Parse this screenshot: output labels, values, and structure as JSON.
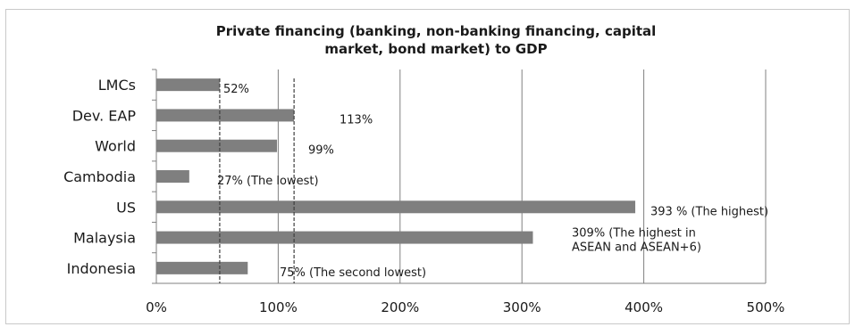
{
  "chart_data": {
    "type": "bar",
    "orientation": "horizontal",
    "title_lines": [
      "Private financing (banking, non-banking financing, capital",
      "market, bond market) to GDP"
    ],
    "categories": [
      "LMCs",
      "Dev. EAP",
      "World",
      "Cambodia",
      "US",
      "Malaysia",
      "Indonesia"
    ],
    "values": [
      52,
      113,
      99,
      27,
      393,
      309,
      75
    ],
    "data_labels": [
      [
        "52%"
      ],
      [
        "113%"
      ],
      [
        "99%"
      ],
      [
        "27% (The lowest)"
      ],
      [
        "393 % (The highest)"
      ],
      [
        "309% (The highest in",
        "ASEAN and ASEAN+6)"
      ],
      [
        "75% (The second lowest)"
      ]
    ],
    "x_ticks": [
      "0%",
      "100%",
      "200%",
      "300%",
      "400%",
      "500%"
    ],
    "xlim": [
      0,
      500
    ],
    "reference_lines": [
      52,
      113
    ],
    "grid": "vertical",
    "bar_color": "#7f7f7f"
  }
}
